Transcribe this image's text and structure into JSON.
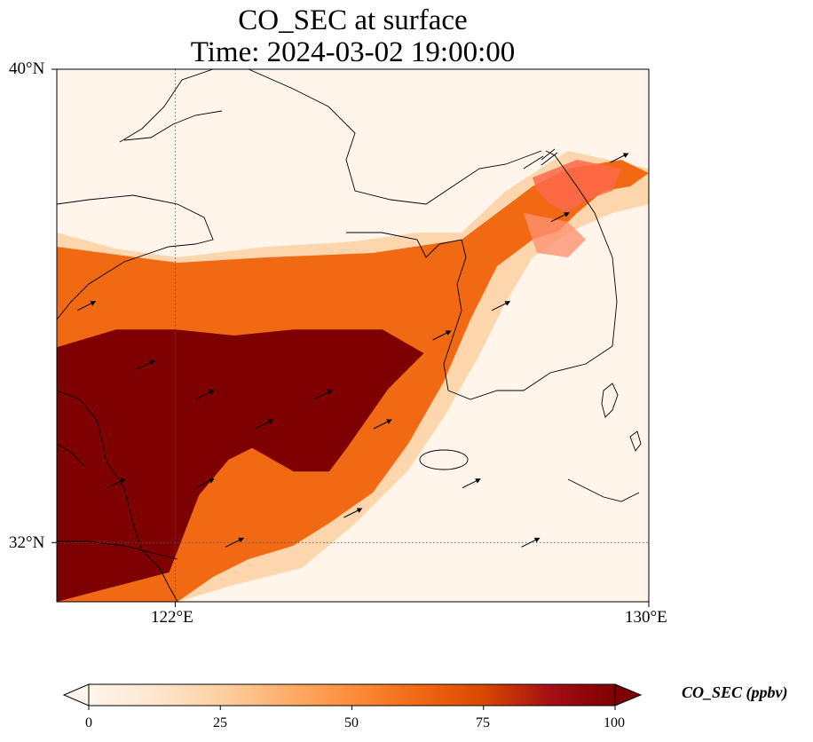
{
  "title": {
    "line1": "CO_SEC at surface",
    "line2": "Time: 2024-03-02 19:00:00"
  },
  "axes": {
    "lon_range": [
      120,
      130
    ],
    "lat_range": [
      31,
      40
    ],
    "lon_ticks": [
      {
        "value": 122,
        "label": "122°E"
      },
      {
        "value": 130,
        "label": "130°E"
      }
    ],
    "lat_ticks": [
      {
        "value": 40,
        "label": "40°N"
      },
      {
        "value": 32,
        "label": "32°N"
      }
    ],
    "gridlines": "dotted"
  },
  "colorbar": {
    "title": "CO_SEC (ppbv)",
    "min": 0,
    "max": 100,
    "extend": "both",
    "ticks": [
      "0",
      "25",
      "50",
      "75",
      "100"
    ],
    "colors": [
      "#fff5eb",
      "#fee6ce",
      "#fdd0a2",
      "#fdae6b",
      "#fd8d3c",
      "#f16913",
      "#d94801",
      "#a50f15",
      "#7f0000"
    ]
  },
  "chart_data": {
    "type": "heatmap",
    "variable": "CO_SEC",
    "units": "ppbv",
    "level": "surface",
    "time": "2024-03-02 19:00:00",
    "plume_core_lonlat": [
      [
        120,
        31
      ],
      [
        120,
        35.3
      ],
      [
        121,
        35.6
      ],
      [
        122,
        35.6
      ],
      [
        123,
        35.5
      ],
      [
        124,
        35.6
      ],
      [
        125.5,
        35.6
      ],
      [
        126.2,
        35.2
      ],
      [
        125.6,
        34.6
      ],
      [
        124.9,
        33.6
      ],
      [
        124.6,
        33.2
      ],
      [
        124,
        33.2
      ],
      [
        123.3,
        33.6
      ],
      [
        122.9,
        33.4
      ],
      [
        122.4,
        32.8
      ],
      [
        121.9,
        31.5
      ]
    ],
    "plume_core_value": 100,
    "secondary_band_value": 55,
    "korea_patch_value": 45,
    "wind_vectors": [
      {
        "lon": 120.5,
        "lat": 36.0
      },
      {
        "lon": 121.5,
        "lat": 35.0
      },
      {
        "lon": 122.5,
        "lat": 34.5
      },
      {
        "lon": 123.5,
        "lat": 34.0
      },
      {
        "lon": 124.5,
        "lat": 34.5
      },
      {
        "lon": 125.5,
        "lat": 34.0
      },
      {
        "lon": 126.5,
        "lat": 35.5
      },
      {
        "lon": 127.5,
        "lat": 36.0
      },
      {
        "lon": 128.5,
        "lat": 37.5
      },
      {
        "lon": 129.5,
        "lat": 38.5
      },
      {
        "lon": 123.0,
        "lat": 32.0
      },
      {
        "lon": 125.0,
        "lat": 32.5
      },
      {
        "lon": 127.0,
        "lat": 33.0
      },
      {
        "lon": 128.0,
        "lat": 32.0
      },
      {
        "lon": 121.0,
        "lat": 33.0
      },
      {
        "lon": 122.5,
        "lat": 33.0
      }
    ]
  }
}
